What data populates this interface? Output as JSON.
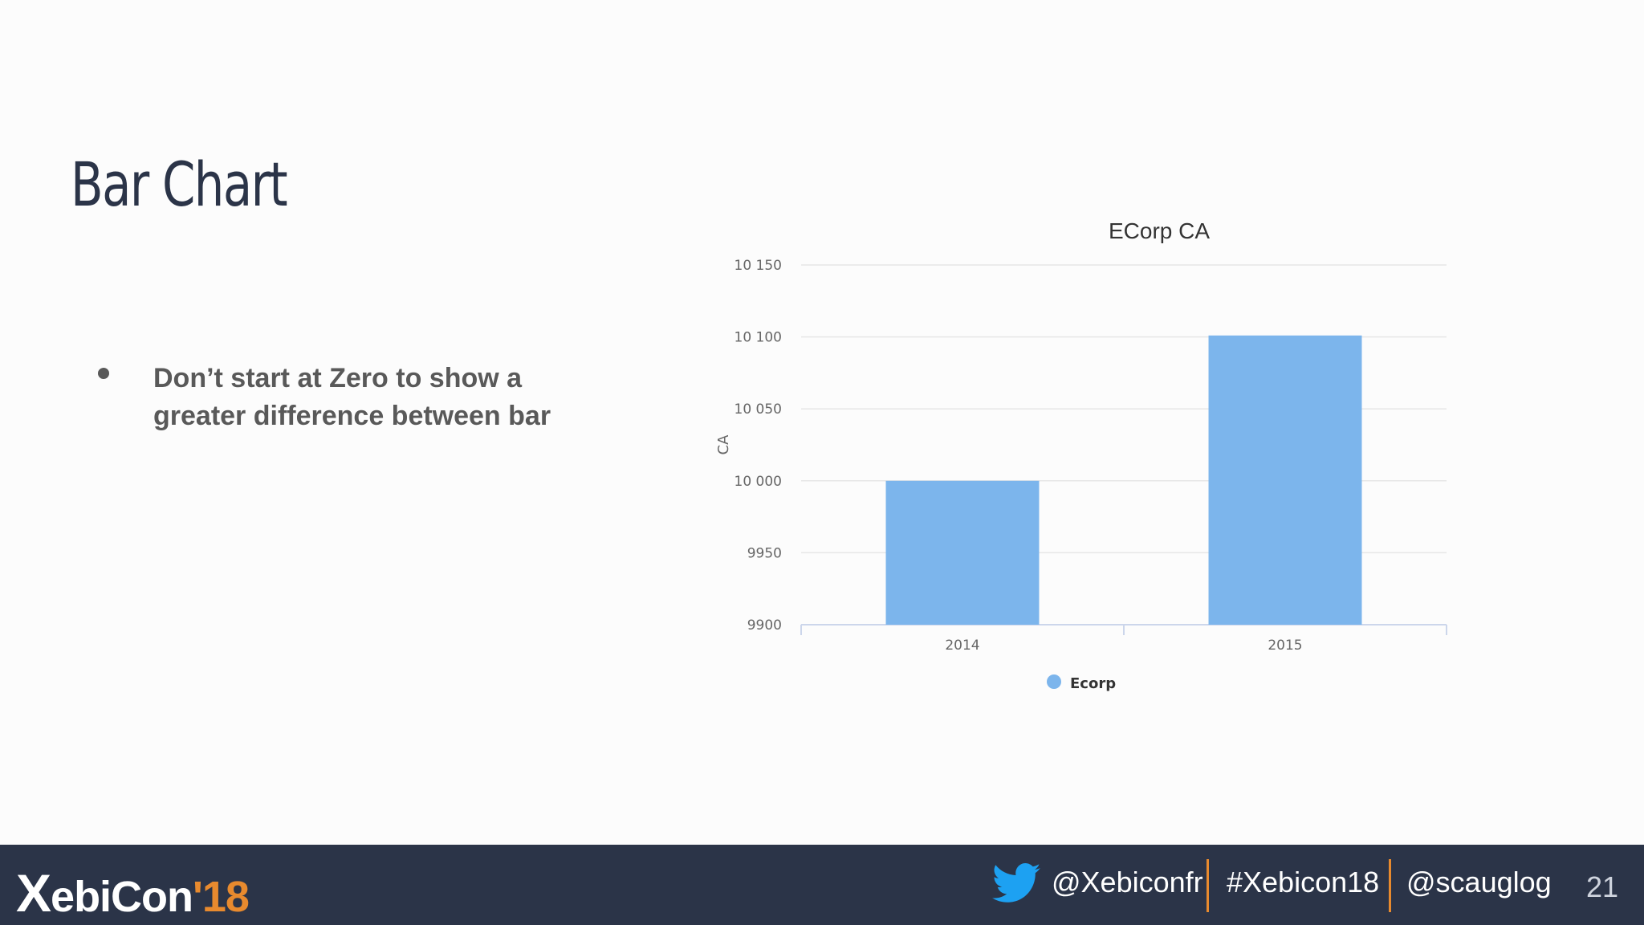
{
  "slide": {
    "title": "Bar Chart",
    "bullet": "Don’t start at Zero to show a greater difference between bar"
  },
  "chart_data": {
    "type": "bar",
    "title": "ECorp CA",
    "ylabel": "CA",
    "xlabel": "",
    "categories": [
      "2014",
      "2015"
    ],
    "series": [
      {
        "name": "Ecorp",
        "values": [
          10000,
          10101
        ],
        "color": "#7cb5ec"
      }
    ],
    "ylim": [
      9900,
      10150
    ],
    "yticks": [
      9900,
      9950,
      10000,
      10050,
      10100,
      10150
    ],
    "ytick_labels": [
      "9900",
      "9950",
      "10 000",
      "10 050",
      "10 100",
      "10 150"
    ],
    "grid": true,
    "legend": "bottom-center"
  },
  "footer": {
    "logo_main": "ebiCon",
    "logo_x": "X",
    "logo_year": "'18",
    "twitter": "@Xebiconfr",
    "hashtag": "#Xebicon18",
    "speaker": "@scauglog",
    "page": "21",
    "twitter_icon": "twitter-bird-icon"
  }
}
